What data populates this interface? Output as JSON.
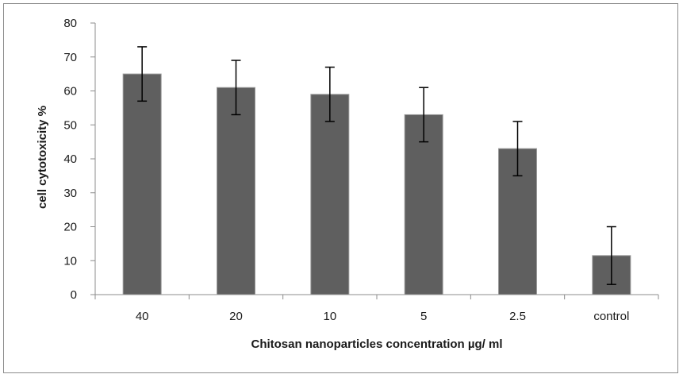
{
  "chart_data": {
    "type": "bar",
    "title": "",
    "xlabel": "Chitosan nanoparticles concentration µg/ ml",
    "ylabel": "cell cytotoxicity %",
    "categories": [
      "40",
      "20",
      "10",
      "5",
      "2.5",
      "control"
    ],
    "values": [
      65,
      61,
      59,
      53,
      43,
      11.5
    ],
    "error": [
      8,
      8,
      8,
      8,
      8,
      8.5
    ],
    "ylim": [
      0,
      80
    ],
    "yticks": [
      0,
      10,
      20,
      30,
      40,
      50,
      60,
      70,
      80
    ],
    "grid": false,
    "legend": "none",
    "bar_color": "#5f5f5f",
    "error_color": "#000000"
  }
}
